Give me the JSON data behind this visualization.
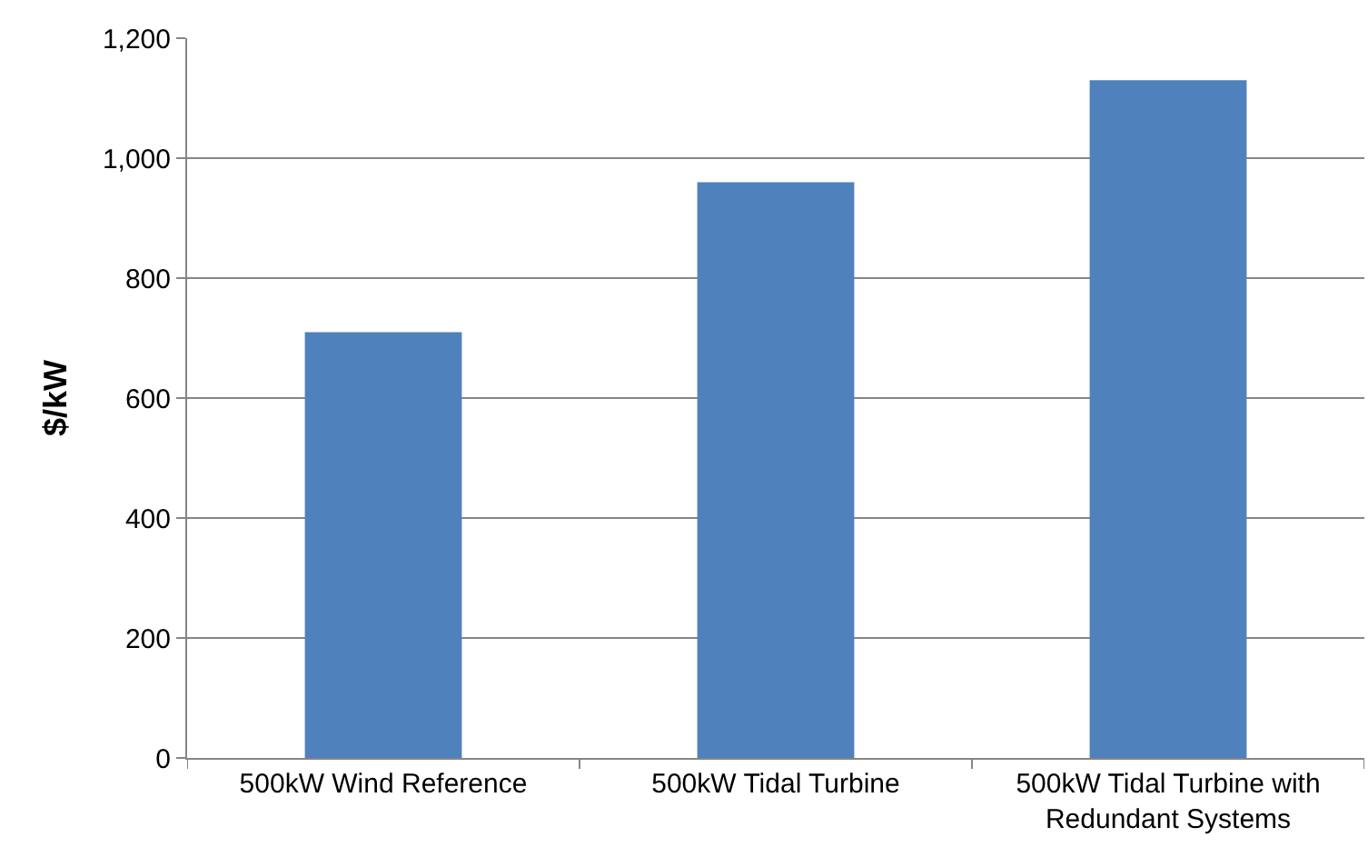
{
  "chart_data": {
    "type": "bar",
    "ylabel": "$/kW",
    "categories": [
      "500kW Wind Reference",
      "500kW Tidal Turbine",
      "500kW Tidal Turbine with Redundant Systems"
    ],
    "values": [
      710,
      960,
      1130
    ],
    "color": "#4f81bd",
    "ylim": [
      0,
      1200
    ],
    "yticks": [
      {
        "value": 0,
        "label": "0"
      },
      {
        "value": 200,
        "label": "200"
      },
      {
        "value": 400,
        "label": "400"
      },
      {
        "value": 600,
        "label": "600"
      },
      {
        "value": 800,
        "label": "800"
      },
      {
        "value": 1000,
        "label": "1,000"
      },
      {
        "value": 1200,
        "label": "1,200"
      }
    ],
    "grid": "y"
  }
}
